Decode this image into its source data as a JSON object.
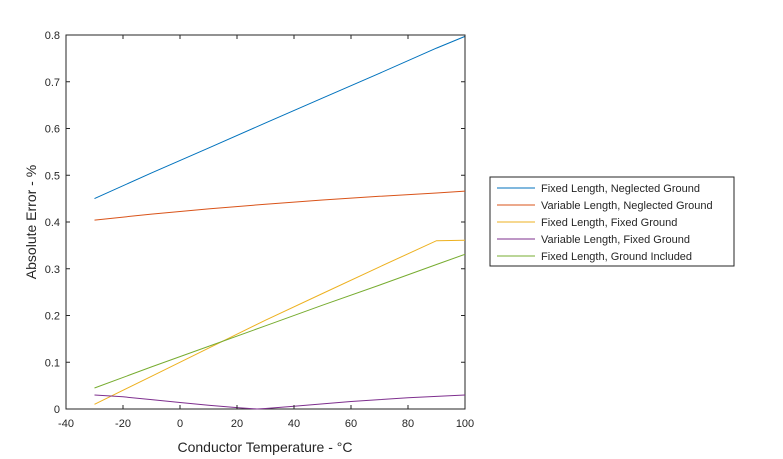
{
  "chart_data": {
    "type": "line",
    "title": "",
    "xlabel": "Conductor Temperature - ",
    "xlabel_unit": "°C",
    "ylabel": "Absolute Error - %",
    "xlim": [
      -40,
      100
    ],
    "ylim": [
      0,
      0.8
    ],
    "xticks": [
      -40,
      -20,
      0,
      20,
      40,
      60,
      80,
      100
    ],
    "yticks": [
      0,
      0.1,
      0.2,
      0.3,
      0.4,
      0.5,
      0.6,
      0.7,
      0.8
    ],
    "xtick_labels": [
      "-40",
      "-20",
      "0",
      "20",
      "40",
      "60",
      "80",
      "100"
    ],
    "ytick_labels": [
      "0",
      "0.1",
      "0.2",
      "0.3",
      "0.4",
      "0.5",
      "0.6",
      "0.7",
      "0.8"
    ],
    "grid": false,
    "legend_position": "outside-right",
    "series": [
      {
        "name": "Fixed Length, Neglected Ground",
        "color": "#0072bd",
        "x": [
          -30,
          -10,
          10,
          30,
          50,
          70,
          90,
          100
        ],
        "y": [
          0.45,
          0.505,
          0.558,
          0.612,
          0.665,
          0.718,
          0.772,
          0.797
        ]
      },
      {
        "name": "Variable Length, Neglected Ground",
        "color": "#d95319",
        "x": [
          -30,
          -10,
          10,
          30,
          50,
          70,
          90,
          100
        ],
        "y": [
          0.404,
          0.417,
          0.428,
          0.438,
          0.447,
          0.455,
          0.462,
          0.466
        ]
      },
      {
        "name": "Fixed Length, Fixed Ground",
        "color": "#edb120",
        "x": [
          -30,
          -10,
          10,
          30,
          50,
          70,
          90,
          100
        ],
        "y": [
          0.01,
          0.07,
          0.13,
          0.19,
          0.247,
          0.304,
          0.36,
          0.361
        ]
      },
      {
        "name": "Variable Length, Fixed Ground",
        "color": "#7e2f8e",
        "x": [
          -30,
          -20,
          -10,
          0,
          10,
          20,
          27,
          30,
          40,
          50,
          60,
          70,
          80,
          90,
          100
        ],
        "y": [
          0.03,
          0.026,
          0.02,
          0.014,
          0.008,
          0.003,
          0.0,
          0.001,
          0.006,
          0.011,
          0.016,
          0.02,
          0.024,
          0.027,
          0.03
        ]
      },
      {
        "name": "Fixed Length, Ground Included",
        "color": "#77ac30",
        "x": [
          -30,
          -10,
          10,
          30,
          50,
          70,
          90,
          100
        ],
        "y": [
          0.045,
          0.09,
          0.134,
          0.178,
          0.222,
          0.265,
          0.309,
          0.331
        ]
      }
    ]
  }
}
